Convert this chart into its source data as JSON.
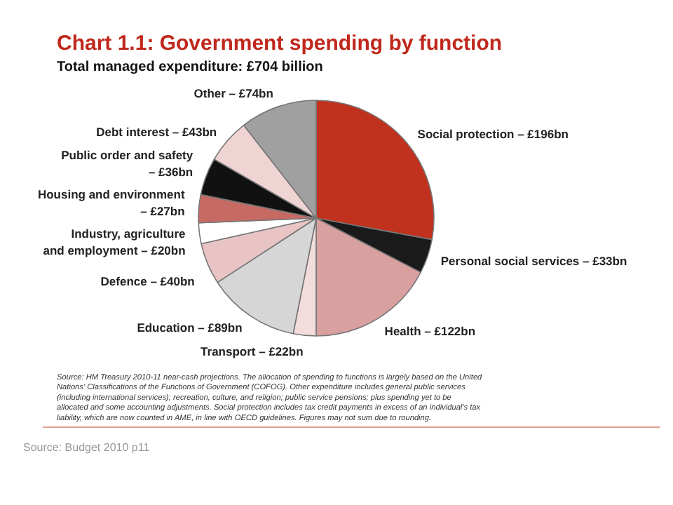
{
  "chart_data": {
    "type": "pie",
    "title": "Chart 1.1: Government spending by function",
    "subtitle": "Total managed expenditure: £704 billion",
    "categories": [
      "Social protection –",
      "Personal social services –",
      "Health –",
      "Transport –",
      "Education –",
      "Defence –",
      "Industry, agriculture and employment –",
      "Housing and environment –",
      "Public order and safety –",
      "Debt interest –",
      "Other –"
    ],
    "values": [
      196,
      33,
      122,
      22,
      89,
      40,
      20,
      27,
      36,
      43,
      74
    ],
    "value_labels": [
      "£196bn",
      "£33bn",
      "£122bn",
      "£22bn",
      "£89bn",
      "£40bn",
      "£20bn",
      "£27bn",
      "£36bn",
      "£43bn",
      "£74bn"
    ],
    "colors": [
      "#c0311e",
      "#1a1a1a",
      "#d9a0a0",
      "#f3dcdc",
      "#d6d6d6",
      "#e8c4c4",
      "#ffffff",
      "#c86a64",
      "#111111",
      "#f0d4d4",
      "#a0a0a0"
    ],
    "annotations": [
      "Source: HM Treasury 2010-11 near-cash projections. The allocation of spending to functions is largely based on the United Nations' Classifications of the Functions of Government (COFOG). Other expenditure includes general public services (including international services); recreation, culture, and religion; public service pensions; plus spending yet to be allocated and some accounting adjustments. Social protection includes tax credit payments in excess of an individual's tax liability, which are now counted in AME, in line with OECD guidelines. Figures may not sum due to rounding.",
      "Source: Budget 2010 p11"
    ]
  }
}
